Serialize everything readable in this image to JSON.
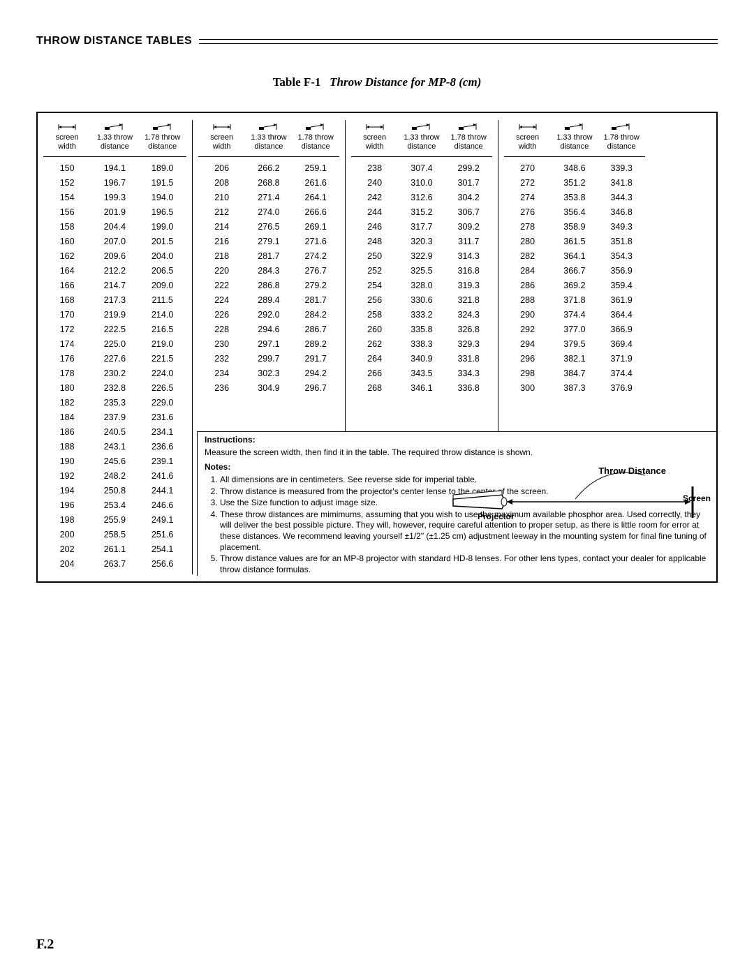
{
  "section_title": "THROW DISTANCE TABLES",
  "table_title_prefix": "Table F-1",
  "table_title_suffix": "Throw Distance for MP-8 (cm)",
  "page_number": "F.2",
  "headers": {
    "h1": "screen",
    "h1b": "width",
    "h2": "1.33 throw",
    "h2b": "distance",
    "h3": "1.78 throw",
    "h3b": "distance"
  },
  "col1": [
    [
      "150",
      "194.1",
      "189.0"
    ],
    [
      "152",
      "196.7",
      "191.5"
    ],
    [
      "154",
      "199.3",
      "194.0"
    ],
    [
      "156",
      "201.9",
      "196.5"
    ],
    [
      "158",
      "204.4",
      "199.0"
    ],
    [
      "160",
      "207.0",
      "201.5"
    ],
    [
      "162",
      "209.6",
      "204.0"
    ],
    [
      "164",
      "212.2",
      "206.5"
    ],
    [
      "166",
      "214.7",
      "209.0"
    ],
    [
      "168",
      "217.3",
      "211.5"
    ],
    [
      "170",
      "219.9",
      "214.0"
    ],
    [
      "172",
      "222.5",
      "216.5"
    ],
    [
      "174",
      "225.0",
      "219.0"
    ],
    [
      "176",
      "227.6",
      "221.5"
    ],
    [
      "178",
      "230.2",
      "224.0"
    ],
    [
      "180",
      "232.8",
      "226.5"
    ],
    [
      "182",
      "235.3",
      "229.0"
    ],
    [
      "184",
      "237.9",
      "231.6"
    ],
    [
      "186",
      "240.5",
      "234.1"
    ],
    [
      "188",
      "243.1",
      "236.6"
    ],
    [
      "190",
      "245.6",
      "239.1"
    ],
    [
      "192",
      "248.2",
      "241.6"
    ],
    [
      "194",
      "250.8",
      "244.1"
    ],
    [
      "196",
      "253.4",
      "246.6"
    ],
    [
      "198",
      "255.9",
      "249.1"
    ],
    [
      "200",
      "258.5",
      "251.6"
    ],
    [
      "202",
      "261.1",
      "254.1"
    ],
    [
      "204",
      "263.7",
      "256.6"
    ]
  ],
  "col2": [
    [
      "206",
      "266.2",
      "259.1"
    ],
    [
      "208",
      "268.8",
      "261.6"
    ],
    [
      "210",
      "271.4",
      "264.1"
    ],
    [
      "212",
      "274.0",
      "266.6"
    ],
    [
      "214",
      "276.5",
      "269.1"
    ],
    [
      "216",
      "279.1",
      "271.6"
    ],
    [
      "218",
      "281.7",
      "274.2"
    ],
    [
      "220",
      "284.3",
      "276.7"
    ],
    [
      "222",
      "286.8",
      "279.2"
    ],
    [
      "224",
      "289.4",
      "281.7"
    ],
    [
      "226",
      "292.0",
      "284.2"
    ],
    [
      "228",
      "294.6",
      "286.7"
    ],
    [
      "230",
      "297.1",
      "289.2"
    ],
    [
      "232",
      "299.7",
      "291.7"
    ],
    [
      "234",
      "302.3",
      "294.2"
    ],
    [
      "236",
      "304.9",
      "296.7"
    ]
  ],
  "col3": [
    [
      "238",
      "307.4",
      "299.2"
    ],
    [
      "240",
      "310.0",
      "301.7"
    ],
    [
      "242",
      "312.6",
      "304.2"
    ],
    [
      "244",
      "315.2",
      "306.7"
    ],
    [
      "246",
      "317.7",
      "309.2"
    ],
    [
      "248",
      "320.3",
      "311.7"
    ],
    [
      "250",
      "322.9",
      "314.3"
    ],
    [
      "252",
      "325.5",
      "316.8"
    ],
    [
      "254",
      "328.0",
      "319.3"
    ],
    [
      "256",
      "330.6",
      "321.8"
    ],
    [
      "258",
      "333.2",
      "324.3"
    ],
    [
      "260",
      "335.8",
      "326.8"
    ],
    [
      "262",
      "338.3",
      "329.3"
    ],
    [
      "264",
      "340.9",
      "331.8"
    ],
    [
      "266",
      "343.5",
      "334.3"
    ],
    [
      "268",
      "346.1",
      "336.8"
    ]
  ],
  "col4": [
    [
      "270",
      "348.6",
      "339.3"
    ],
    [
      "272",
      "351.2",
      "341.8"
    ],
    [
      "274",
      "353.8",
      "344.3"
    ],
    [
      "276",
      "356.4",
      "346.8"
    ],
    [
      "278",
      "358.9",
      "349.3"
    ],
    [
      "280",
      "361.5",
      "351.8"
    ],
    [
      "282",
      "364.1",
      "354.3"
    ],
    [
      "284",
      "366.7",
      "356.9"
    ],
    [
      "286",
      "369.2",
      "359.4"
    ],
    [
      "288",
      "371.8",
      "361.9"
    ],
    [
      "290",
      "374.4",
      "364.4"
    ],
    [
      "292",
      "377.0",
      "366.9"
    ],
    [
      "294",
      "379.5",
      "369.4"
    ],
    [
      "296",
      "382.1",
      "371.9"
    ],
    [
      "298",
      "384.7",
      "374.4"
    ],
    [
      "300",
      "387.3",
      "376.9"
    ]
  ],
  "notes": {
    "instructions_label": "Instructions:",
    "instructions_text": "Measure the screen width, then find it in the table. The required throw distance is shown.",
    "notes_label": "Notes:",
    "items": [
      "All dimensions are in centimeters. See reverse side for imperial table.",
      "Throw distance is measured from the projector's center lense to the center of the screen.",
      "Use the Size function to adjust image size.",
      "These throw distances are mimimums, assuming that you wish to use the maximum available phosphor area. Used correctly, they will deliver the best possible picture. They will, however, require careful attention to proper setup, as there is little room for error at these distances. We recommend leaving yourself ±1/2\" (±1.25 cm) adjustment leeway in the mounting system for final fine tuning of placement.",
      "Throw distance values are for an MP-8 projector with standard HD-8 lenses. For other lens types, contact your dealer for applicable throw distance formulas."
    ],
    "diagram": {
      "throw_distance_label": "Throw Distance",
      "projector_label": "Projector",
      "screen_label": "Screen"
    }
  }
}
